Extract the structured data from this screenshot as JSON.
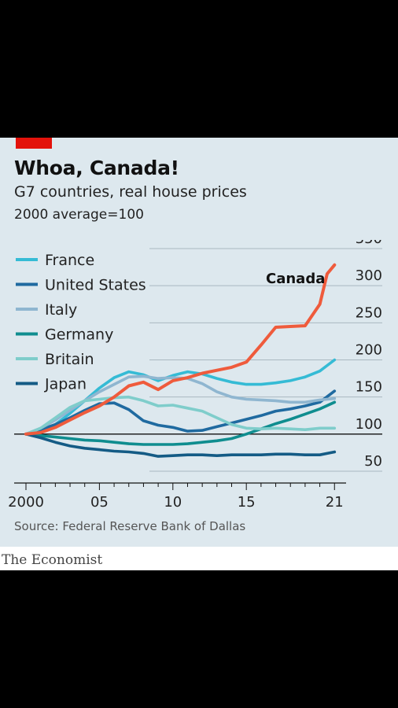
{
  "chart_data": {
    "type": "line",
    "title": "Whoa, Canada!",
    "subtitle": "G7 countries, real house prices",
    "units": "2000 average=100",
    "source": "Source: Federal Reserve Bank of Dallas",
    "xlim": [
      2000,
      2021.5
    ],
    "ylim": [
      50,
      350
    ],
    "yticks": [
      50,
      100,
      150,
      200,
      250,
      300,
      350
    ],
    "xticks": [
      2000,
      2005,
      2010,
      2015,
      2021
    ],
    "xticklabels": [
      "2000",
      "05",
      "10",
      "15",
      "21"
    ],
    "legend_position": "top-left",
    "grid": true,
    "series": [
      {
        "name": "France",
        "color": "#35bbd5",
        "points": [
          [
            2000,
            100
          ],
          [
            2001,
            104
          ],
          [
            2002,
            113
          ],
          [
            2003,
            128
          ],
          [
            2004,
            145
          ],
          [
            2005,
            162
          ],
          [
            2006,
            176
          ],
          [
            2007,
            184
          ],
          [
            2008,
            180
          ],
          [
            2009,
            172
          ],
          [
            2010,
            179
          ],
          [
            2011,
            184
          ],
          [
            2012,
            181
          ],
          [
            2013,
            175
          ],
          [
            2014,
            170
          ],
          [
            2015,
            167
          ],
          [
            2016,
            167
          ],
          [
            2017,
            169
          ],
          [
            2018,
            172
          ],
          [
            2019,
            177
          ],
          [
            2020,
            185
          ],
          [
            2021,
            200
          ]
        ]
      },
      {
        "name": "United States",
        "color": "#1f6aa0",
        "points": [
          [
            2000,
            100
          ],
          [
            2001,
            106
          ],
          [
            2002,
            113
          ],
          [
            2003,
            122
          ],
          [
            2004,
            132
          ],
          [
            2005,
            141
          ],
          [
            2006,
            142
          ],
          [
            2007,
            133
          ],
          [
            2008,
            118
          ],
          [
            2009,
            112
          ],
          [
            2010,
            109
          ],
          [
            2011,
            104
          ],
          [
            2012,
            105
          ],
          [
            2013,
            110
          ],
          [
            2014,
            115
          ],
          [
            2015,
            120
          ],
          [
            2016,
            125
          ],
          [
            2017,
            131
          ],
          [
            2018,
            134
          ],
          [
            2019,
            138
          ],
          [
            2020,
            143
          ],
          [
            2021,
            158
          ]
        ]
      },
      {
        "name": "Italy",
        "color": "#8fb6d0",
        "points": [
          [
            2000,
            100
          ],
          [
            2001,
            108
          ],
          [
            2002,
            119
          ],
          [
            2003,
            132
          ],
          [
            2004,
            145
          ],
          [
            2005,
            157
          ],
          [
            2006,
            167
          ],
          [
            2007,
            177
          ],
          [
            2008,
            178
          ],
          [
            2009,
            175
          ],
          [
            2010,
            176
          ],
          [
            2011,
            175
          ],
          [
            2012,
            168
          ],
          [
            2013,
            157
          ],
          [
            2014,
            150
          ],
          [
            2015,
            147
          ],
          [
            2016,
            146
          ],
          [
            2017,
            145
          ],
          [
            2018,
            143
          ],
          [
            2019,
            143
          ],
          [
            2020,
            146
          ],
          [
            2021,
            148
          ]
        ]
      },
      {
        "name": "Germany",
        "color": "#0f8d8f",
        "points": [
          [
            2000,
            100
          ],
          [
            2001,
            98
          ],
          [
            2002,
            96
          ],
          [
            2003,
            94
          ],
          [
            2004,
            92
          ],
          [
            2005,
            91
          ],
          [
            2006,
            89
          ],
          [
            2007,
            87
          ],
          [
            2008,
            86
          ],
          [
            2009,
            86
          ],
          [
            2010,
            86
          ],
          [
            2011,
            87
          ],
          [
            2012,
            89
          ],
          [
            2013,
            91
          ],
          [
            2014,
            94
          ],
          [
            2015,
            100
          ],
          [
            2016,
            107
          ],
          [
            2017,
            114
          ],
          [
            2018,
            120
          ],
          [
            2019,
            127
          ],
          [
            2020,
            134
          ],
          [
            2021,
            143
          ]
        ]
      },
      {
        "name": "Britain",
        "color": "#7fcdcb",
        "points": [
          [
            2000,
            100
          ],
          [
            2001,
            108
          ],
          [
            2002,
            122
          ],
          [
            2003,
            136
          ],
          [
            2004,
            145
          ],
          [
            2005,
            147
          ],
          [
            2006,
            149
          ],
          [
            2007,
            150
          ],
          [
            2008,
            145
          ],
          [
            2009,
            138
          ],
          [
            2010,
            139
          ],
          [
            2011,
            135
          ],
          [
            2012,
            131
          ],
          [
            2013,
            122
          ],
          [
            2014,
            113
          ],
          [
            2015,
            108
          ],
          [
            2016,
            107
          ],
          [
            2017,
            108
          ],
          [
            2018,
            107
          ],
          [
            2019,
            106
          ],
          [
            2020,
            108
          ],
          [
            2021,
            108
          ]
        ]
      },
      {
        "name": "Japan",
        "color": "#145b85",
        "points": [
          [
            2000,
            100
          ],
          [
            2001,
            95
          ],
          [
            2002,
            89
          ],
          [
            2003,
            84
          ],
          [
            2004,
            81
          ],
          [
            2005,
            79
          ],
          [
            2006,
            77
          ],
          [
            2007,
            76
          ],
          [
            2008,
            74
          ],
          [
            2009,
            70
          ],
          [
            2010,
            71
          ],
          [
            2011,
            72
          ],
          [
            2012,
            72
          ],
          [
            2013,
            71
          ],
          [
            2014,
            72
          ],
          [
            2015,
            72
          ],
          [
            2016,
            72
          ],
          [
            2017,
            73
          ],
          [
            2018,
            73
          ],
          [
            2019,
            72
          ],
          [
            2020,
            72
          ],
          [
            2021,
            76
          ]
        ]
      },
      {
        "name": "Canada",
        "color": "#ef5b3c",
        "label": "Canada",
        "points": [
          [
            2000,
            100
          ],
          [
            2001,
            102
          ],
          [
            2002,
            109
          ],
          [
            2003,
            119
          ],
          [
            2004,
            129
          ],
          [
            2005,
            138
          ],
          [
            2006,
            150
          ],
          [
            2007,
            165
          ],
          [
            2008,
            170
          ],
          [
            2009,
            160
          ],
          [
            2010,
            172
          ],
          [
            2011,
            176
          ],
          [
            2012,
            182
          ],
          [
            2013,
            186
          ],
          [
            2014,
            190
          ],
          [
            2015,
            197
          ],
          [
            2016,
            220
          ],
          [
            2017,
            244
          ],
          [
            2018,
            245
          ],
          [
            2019,
            246
          ],
          [
            2020,
            275
          ],
          [
            2020.5,
            316
          ],
          [
            2021,
            328
          ]
        ]
      }
    ]
  },
  "brand": "The Economist"
}
